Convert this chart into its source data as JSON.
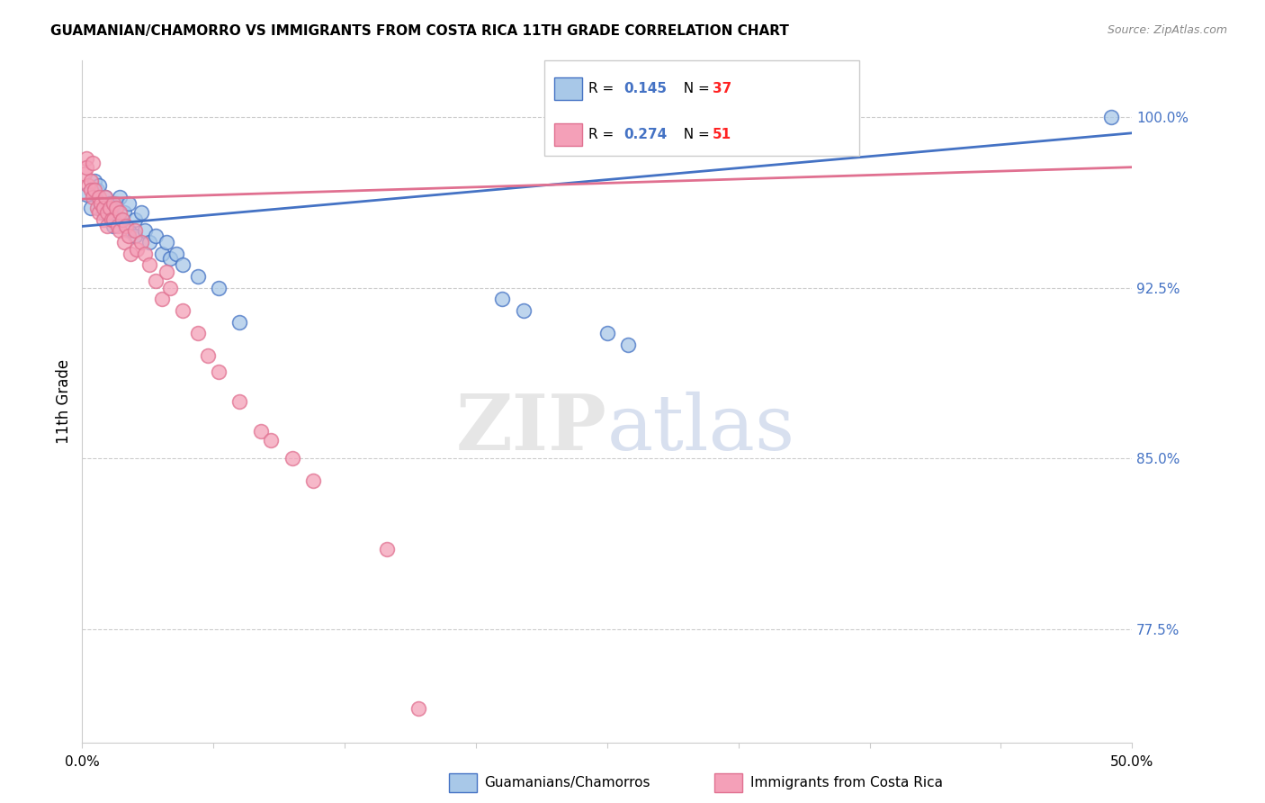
{
  "title": "GUAMANIAN/CHAMORRO VS IMMIGRANTS FROM COSTA RICA 11TH GRADE CORRELATION CHART",
  "source": "Source: ZipAtlas.com",
  "ylabel": "11th Grade",
  "ytick_labels": [
    "100.0%",
    "92.5%",
    "85.0%",
    "77.5%"
  ],
  "ytick_values": [
    1.0,
    0.925,
    0.85,
    0.775
  ],
  "xlim": [
    0.0,
    0.5
  ],
  "ylim": [
    0.725,
    1.025
  ],
  "blue_color": "#A8C8E8",
  "pink_color": "#F4A0B8",
  "blue_line_color": "#4472C4",
  "pink_line_color": "#E07090",
  "r_value_color": "#4472C4",
  "n_value_color": "#FF2222",
  "blue_scatter_x": [
    0.002,
    0.004,
    0.006,
    0.007,
    0.008,
    0.009,
    0.01,
    0.011,
    0.012,
    0.013,
    0.015,
    0.015,
    0.016,
    0.018,
    0.018,
    0.02,
    0.022,
    0.022,
    0.025,
    0.025,
    0.028,
    0.03,
    0.032,
    0.035,
    0.038,
    0.04,
    0.042,
    0.045,
    0.048,
    0.055,
    0.065,
    0.075,
    0.2,
    0.21,
    0.25,
    0.26,
    0.49
  ],
  "blue_scatter_y": [
    0.966,
    0.96,
    0.972,
    0.968,
    0.97,
    0.962,
    0.958,
    0.965,
    0.96,
    0.962,
    0.958,
    0.952,
    0.962,
    0.955,
    0.965,
    0.958,
    0.95,
    0.962,
    0.955,
    0.948,
    0.958,
    0.95,
    0.945,
    0.948,
    0.94,
    0.945,
    0.938,
    0.94,
    0.935,
    0.93,
    0.925,
    0.91,
    0.92,
    0.915,
    0.905,
    0.9,
    1.0
  ],
  "pink_scatter_x": [
    0.001,
    0.002,
    0.002,
    0.003,
    0.004,
    0.004,
    0.005,
    0.005,
    0.006,
    0.007,
    0.008,
    0.008,
    0.009,
    0.01,
    0.01,
    0.011,
    0.012,
    0.012,
    0.013,
    0.014,
    0.015,
    0.015,
    0.016,
    0.017,
    0.018,
    0.018,
    0.019,
    0.02,
    0.021,
    0.022,
    0.023,
    0.025,
    0.026,
    0.028,
    0.03,
    0.032,
    0.035,
    0.038,
    0.04,
    0.042,
    0.048,
    0.055,
    0.06,
    0.065,
    0.075,
    0.085,
    0.09,
    0.1,
    0.11,
    0.145,
    0.16
  ],
  "pink_scatter_y": [
    0.975,
    0.982,
    0.978,
    0.97,
    0.972,
    0.968,
    0.98,
    0.965,
    0.968,
    0.96,
    0.965,
    0.958,
    0.962,
    0.96,
    0.955,
    0.965,
    0.958,
    0.952,
    0.96,
    0.955,
    0.962,
    0.955,
    0.96,
    0.952,
    0.958,
    0.95,
    0.955,
    0.945,
    0.952,
    0.948,
    0.94,
    0.95,
    0.942,
    0.945,
    0.94,
    0.935,
    0.928,
    0.92,
    0.932,
    0.925,
    0.915,
    0.905,
    0.895,
    0.888,
    0.875,
    0.862,
    0.858,
    0.85,
    0.84,
    0.81,
    0.74
  ],
  "blue_trendline_x": [
    0.0,
    0.5
  ],
  "blue_trendline_y": [
    0.952,
    0.993
  ],
  "pink_trendline_x": [
    0.0,
    0.5
  ],
  "pink_trendline_y": [
    0.964,
    0.978
  ],
  "watermark_zip_color": "#C8C8C8",
  "watermark_atlas_color": "#AABBDD",
  "xtick_positions": [
    0.0,
    0.0625,
    0.125,
    0.1875,
    0.25,
    0.3125,
    0.375,
    0.4375,
    0.5
  ]
}
